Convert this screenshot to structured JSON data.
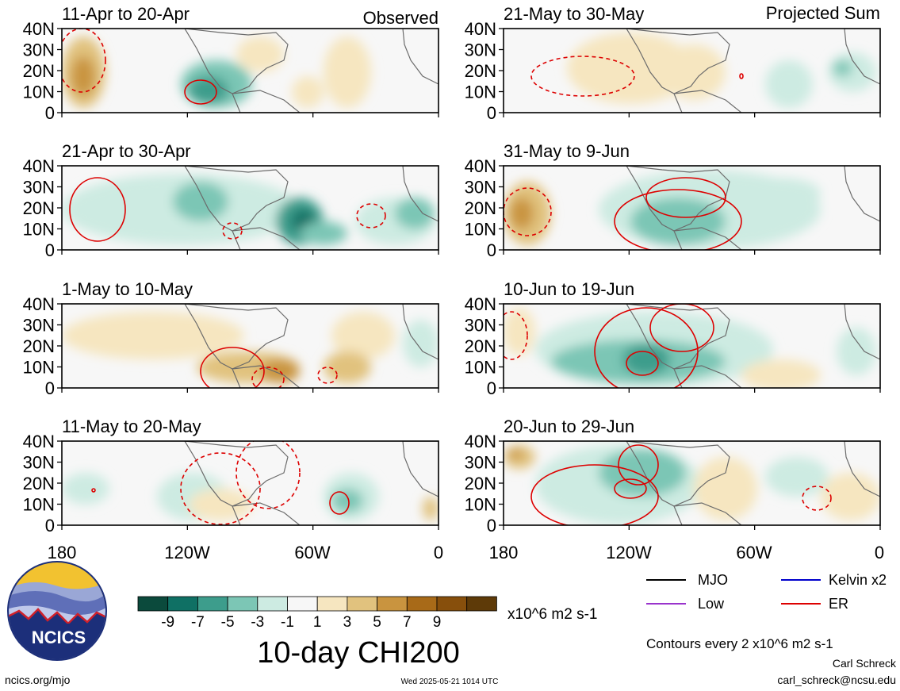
{
  "map": {
    "variable_title": "10-day CHI200",
    "top_left_label": "Observed",
    "top_right_label": "Projected Sum",
    "lat_ticks": [
      "40N",
      "30N",
      "20N",
      "10N",
      "0"
    ],
    "lon_ticks": [
      "180",
      "120W",
      "60W",
      "0"
    ],
    "panels": [
      {
        "col": 0,
        "row": 0,
        "label": "11-Apr to 20-Apr"
      },
      {
        "col": 0,
        "row": 1,
        "label": "21-Apr to 30-Apr"
      },
      {
        "col": 0,
        "row": 2,
        "label": "1-May to 10-May"
      },
      {
        "col": 0,
        "row": 3,
        "label": "11-May to 20-May"
      },
      {
        "col": 1,
        "row": 0,
        "label": "21-May to 30-May"
      },
      {
        "col": 1,
        "row": 1,
        "label": "31-May to 9-Jun"
      },
      {
        "col": 1,
        "row": 2,
        "label": "10-Jun to 19-Jun"
      },
      {
        "col": 1,
        "row": 3,
        "label": "20-Jun to 29-Jun"
      }
    ]
  },
  "colorbar": {
    "colors": [
      "#0b4a3c",
      "#0f7064",
      "#3d9d8c",
      "#7cc6b5",
      "#cdebe2",
      "#f7f7f7",
      "#f6e6c0",
      "#e1c27e",
      "#c9943f",
      "#a86a18",
      "#874f0c",
      "#5e3a08"
    ],
    "tick_labels": [
      "-9",
      "-7",
      "-5",
      "-3",
      "-1",
      "1",
      "3",
      "5",
      "7",
      "9"
    ],
    "units": "x10^6 m2 s-1"
  },
  "legend": {
    "items": [
      {
        "label": "MJO",
        "color": "#000000"
      },
      {
        "label": "Kelvin x2",
        "color": "#0000cc"
      },
      {
        "label": "Low",
        "color": "#9933cc"
      },
      {
        "label": "ER",
        "color": "#dd0000"
      }
    ],
    "contour_note": "Contours every 2 x10^6 m2 s-1"
  },
  "footer": {
    "website": "ncics.org/mjo",
    "timestamp": "Wed 2025-05-21 1014 UTC",
    "author": "Carl Schreck",
    "email": "carl_schreck@ncsu.edu",
    "logo_text": "NCICS"
  }
}
